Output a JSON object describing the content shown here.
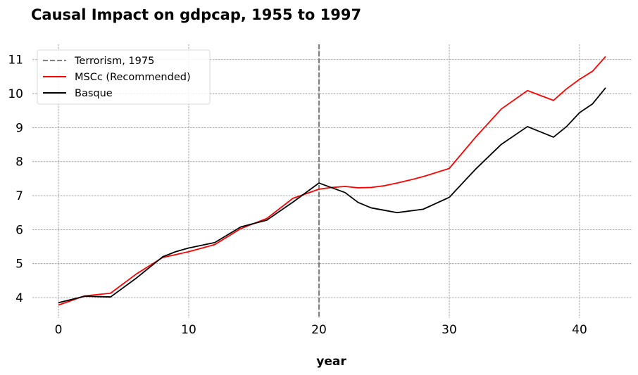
{
  "chart_data": {
    "type": "line",
    "title": "Causal Impact on gdpcap, 1955 to 1997",
    "xlabel": "year",
    "ylabel": "",
    "xlim": [
      -2,
      44
    ],
    "ylim": [
      3.4,
      11.45
    ],
    "xticks": [
      0,
      10,
      20,
      30,
      40
    ],
    "yticks": [
      4,
      5,
      6,
      7,
      8,
      9,
      10,
      11
    ],
    "grid": true,
    "legend_position": "top-left",
    "intervention": {
      "name": "Terrorism, 1975",
      "x": 20,
      "color": "#808080",
      "style": "dashed"
    },
    "series": [
      {
        "name": "MSCc (Recommended)",
        "color": "#ff0000",
        "x": [
          0,
          2,
          4,
          6,
          8,
          10,
          12,
          14,
          16,
          18,
          20,
          21,
          22,
          23,
          24,
          25,
          26,
          27,
          28,
          30,
          32,
          34,
          36,
          38,
          39,
          40,
          41,
          42
        ],
        "y": [
          3.78,
          4.05,
          4.13,
          4.7,
          5.18,
          5.35,
          5.56,
          6.03,
          6.33,
          6.92,
          7.19,
          7.24,
          7.27,
          7.23,
          7.24,
          7.29,
          7.37,
          7.46,
          7.56,
          7.8,
          8.71,
          9.55,
          10.09,
          9.8,
          10.14,
          10.42,
          10.66,
          11.09
        ]
      },
      {
        "name": "Basque",
        "color": "#000000",
        "x": [
          0,
          2,
          4,
          6,
          8,
          9,
          10,
          12,
          14,
          16,
          18,
          20,
          21,
          22,
          23,
          24,
          25,
          26,
          28,
          30,
          32,
          34,
          36,
          38,
          39,
          40,
          41,
          42
        ],
        "y": [
          3.85,
          4.04,
          4.02,
          4.58,
          5.2,
          5.35,
          5.46,
          5.62,
          6.08,
          6.28,
          6.81,
          7.37,
          7.23,
          7.09,
          6.8,
          6.64,
          6.57,
          6.5,
          6.6,
          6.95,
          7.77,
          8.51,
          9.03,
          8.72,
          9.03,
          9.44,
          9.7,
          10.17
        ]
      }
    ]
  }
}
